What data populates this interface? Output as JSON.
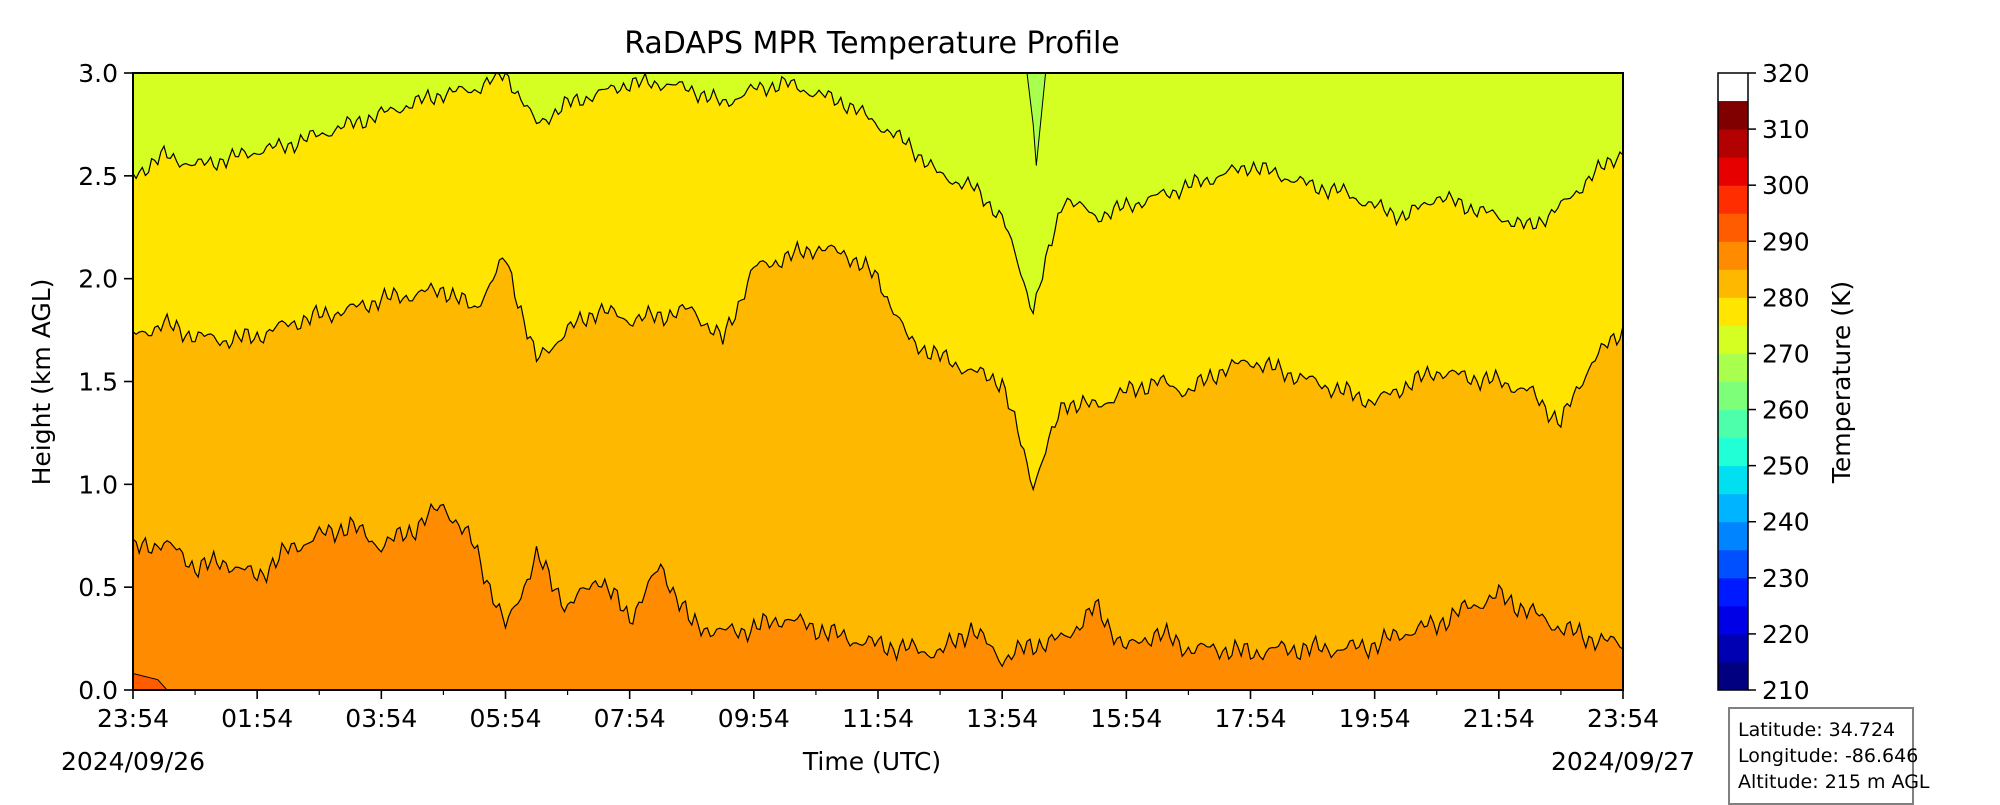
{
  "chart_data": {
    "type": "heatmap",
    "subtype": "filled-contour",
    "title": "RaDAPS MPR Temperature Profile",
    "xlabel": "Time (UTC)",
    "ylabel": "Height (km AGL)",
    "x_tick_labels": [
      "23:54",
      "01:54",
      "03:54",
      "05:54",
      "07:54",
      "09:54",
      "11:54",
      "13:54",
      "15:54",
      "17:54",
      "19:54",
      "21:54",
      "23:54"
    ],
    "x_range_hours": [
      0,
      24
    ],
    "x_start_date": "2024/09/26",
    "x_end_date": "2024/09/27",
    "ylim": [
      0.0,
      3.0
    ],
    "y_tick_labels": [
      "0.0",
      "0.5",
      "1.0",
      "1.5",
      "2.0",
      "2.5",
      "3.0"
    ],
    "y_ticks": [
      0.0,
      0.5,
      1.0,
      1.5,
      2.0,
      2.5,
      3.0
    ],
    "colorbar": {
      "label": "Temperature (K)",
      "range": [
        210,
        320
      ],
      "tick_labels": [
        "210",
        "220",
        "230",
        "240",
        "250",
        "260",
        "270",
        "280",
        "290",
        "300",
        "310",
        "320"
      ],
      "levels": [
        210,
        215,
        220,
        225,
        230,
        235,
        240,
        245,
        250,
        255,
        260,
        265,
        270,
        275,
        280,
        285,
        290,
        295,
        300,
        305,
        310,
        315,
        320
      ],
      "colors": [
        "#000080",
        "#0000b3",
        "#0000e6",
        "#001aff",
        "#0050ff",
        "#0084ff",
        "#00b4ff",
        "#00e0f0",
        "#20ffd5",
        "#4dffaa",
        "#7dff7a",
        "#a8ff4e",
        "#d5ff22",
        "#ffe500",
        "#ffb800",
        "#ff8c00",
        "#ff5c00",
        "#ff2d00",
        "#e60000",
        "#b30000",
        "#800000"
      ]
    },
    "contour_bands": [
      {
        "range": [
          295,
          300
        ],
        "color": "#ff5c00"
      },
      {
        "range": [
          290,
          295
        ],
        "color": "#ff8c00"
      },
      {
        "range": [
          285,
          290
        ],
        "color": "#ffb800"
      },
      {
        "range": [
          280,
          285
        ],
        "color": "#ffe500"
      },
      {
        "range": [
          275,
          280
        ],
        "color": "#d5ff22"
      },
      {
        "range": [
          270,
          275
        ],
        "color": "#a8ff4e"
      }
    ],
    "boundary_290K": {
      "x": [
        0,
        0.5,
        1,
        1.5,
        2,
        2.5,
        3,
        3.5,
        4,
        4.5,
        5,
        5.5,
        6,
        6.5,
        7,
        7.5,
        8,
        8.5,
        9,
        9.5,
        10,
        10.5,
        11,
        11.5,
        12,
        12.5,
        13,
        13.5,
        14,
        14.5,
        15,
        15.5,
        16,
        16.5,
        17,
        17.5,
        18,
        18.5,
        19,
        19.5,
        20,
        20.5,
        21,
        21.5,
        22,
        22.5,
        23,
        23.5,
        24
      ],
      "y": [
        0.68,
        0.72,
        0.6,
        0.62,
        0.55,
        0.68,
        0.75,
        0.8,
        0.7,
        0.78,
        0.9,
        0.7,
        0.3,
        0.65,
        0.4,
        0.55,
        0.35,
        0.6,
        0.32,
        0.28,
        0.3,
        0.35,
        0.3,
        0.25,
        0.22,
        0.2,
        0.18,
        0.3,
        0.15,
        0.22,
        0.25,
        0.4,
        0.2,
        0.28,
        0.2,
        0.2,
        0.18,
        0.2,
        0.2,
        0.2,
        0.22,
        0.28,
        0.32,
        0.4,
        0.46,
        0.38,
        0.3,
        0.25,
        0.22
      ]
    },
    "boundary_285K": {
      "x": [
        0,
        0.5,
        1,
        1.5,
        2,
        2.5,
        3,
        3.5,
        4,
        4.5,
        5,
        5.5,
        6,
        6.5,
        7,
        7.5,
        8,
        8.5,
        9,
        9.5,
        10,
        10.5,
        11,
        11.5,
        12,
        12.5,
        13,
        13.5,
        14,
        14.5,
        15,
        15.5,
        16,
        16.5,
        17,
        17.5,
        18,
        18.5,
        19,
        19.5,
        20,
        20.5,
        21,
        21.5,
        22,
        22.5,
        23,
        23.5,
        24
      ],
      "y": [
        1.72,
        1.78,
        1.72,
        1.7,
        1.72,
        1.78,
        1.82,
        1.85,
        1.9,
        1.92,
        1.95,
        1.85,
        2.1,
        1.6,
        1.75,
        1.85,
        1.8,
        1.82,
        1.85,
        1.7,
        2.05,
        2.1,
        2.15,
        2.12,
        2.0,
        1.7,
        1.62,
        1.55,
        1.5,
        1.0,
        1.4,
        1.38,
        1.45,
        1.5,
        1.45,
        1.55,
        1.6,
        1.55,
        1.5,
        1.45,
        1.4,
        1.48,
        1.55,
        1.52,
        1.5,
        1.45,
        1.3,
        1.6,
        1.75
      ]
    },
    "boundary_280K": {
      "x": [
        0,
        0.5,
        1,
        1.5,
        2,
        2.5,
        3,
        3.5,
        4,
        4.5,
        5,
        5.5,
        6,
        6.5,
        7,
        7.5,
        8,
        8.5,
        9,
        9.5,
        10,
        10.5,
        11,
        11.5,
        12,
        12.5,
        13,
        13.5,
        14,
        14.5,
        15,
        15.5,
        16,
        16.5,
        17,
        17.5,
        18,
        18.5,
        19,
        19.5,
        20,
        20.5,
        21,
        21.5,
        22,
        22.5,
        23,
        23.5,
        24
      ],
      "y": [
        2.5,
        2.6,
        2.55,
        2.58,
        2.62,
        2.65,
        2.7,
        2.75,
        2.8,
        2.85,
        2.9,
        2.92,
        3.0,
        2.75,
        2.85,
        2.9,
        2.95,
        2.95,
        2.92,
        2.85,
        2.92,
        2.95,
        2.9,
        2.85,
        2.75,
        2.65,
        2.5,
        2.45,
        2.3,
        1.85,
        2.4,
        2.3,
        2.35,
        2.4,
        2.45,
        2.5,
        2.55,
        2.5,
        2.45,
        2.42,
        2.35,
        2.3,
        2.4,
        2.35,
        2.3,
        2.25,
        2.35,
        2.5,
        2.62
      ]
    },
    "boundary_275K": {
      "x": [
        14.4,
        14.5,
        14.55,
        14.6,
        14.7
      ],
      "y": [
        3.0,
        2.75,
        2.55,
        2.7,
        3.0
      ]
    }
  },
  "info": {
    "latitude": "Latitude: 34.724",
    "longitude": "Longitude: -86.646",
    "altitude": "Altitude: 215 m AGL"
  }
}
